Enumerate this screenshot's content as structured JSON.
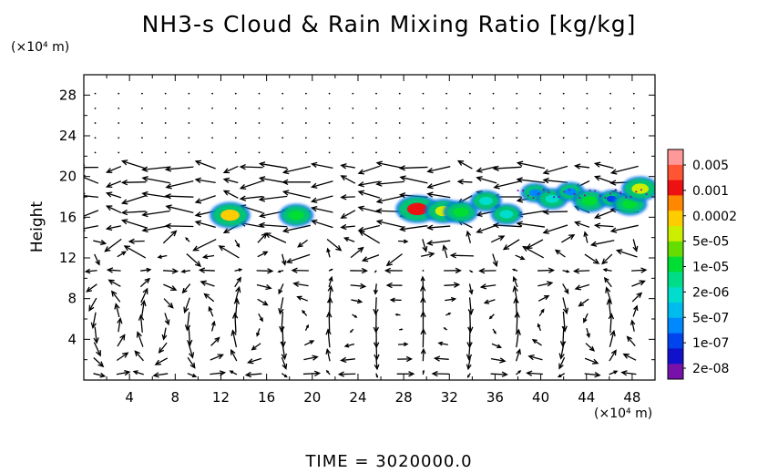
{
  "chart_data": {
    "type": "heatmap",
    "title": "NH3-s Cloud & Rain Mixing Ratio [kg/kg]",
    "xlabel": "",
    "ylabel": "Height",
    "x_unit": "(×10⁴ m)",
    "y_unit": "(×10⁴ m)",
    "xlim": [
      0,
      50
    ],
    "ylim": [
      0,
      30
    ],
    "x_ticks": [
      "4",
      "8",
      "12",
      "16",
      "20",
      "24",
      "28",
      "32",
      "36",
      "40",
      "44",
      "48"
    ],
    "y_ticks": [
      "4",
      "8",
      "12",
      "16",
      "20",
      "24",
      "28"
    ],
    "colorbar": {
      "labels": [
        "0.005",
        "0.001",
        "0.0002",
        "5e-05",
        "1e-05",
        "2e-06",
        "5e-07",
        "1e-07",
        "2e-08"
      ],
      "colors": [
        "#ff9999",
        "#ff5533",
        "#ee1111",
        "#ff8800",
        "#ffcc00",
        "#ccee00",
        "#66dd00",
        "#00dd33",
        "#00dd88",
        "#00ddcc",
        "#00bbee",
        "#0088ff",
        "#0044ee",
        "#1111cc",
        "#7711aa"
      ]
    },
    "clouds": [
      {
        "x": 12.8,
        "y": 16.2,
        "value": "0.0002"
      },
      {
        "x": 18.6,
        "y": 16.2,
        "value": "1e-05"
      },
      {
        "x": 29.2,
        "y": 16.8,
        "value": "0.001"
      },
      {
        "x": 31.5,
        "y": 16.6,
        "value": "5e-05"
      },
      {
        "x": 33.0,
        "y": 16.5,
        "value": "1e-05"
      },
      {
        "x": 35.2,
        "y": 17.6,
        "value": "2e-06"
      },
      {
        "x": 37.0,
        "y": 16.3,
        "value": "2e-06"
      },
      {
        "x": 39.5,
        "y": 18.4,
        "value": "5e-07"
      },
      {
        "x": 41.0,
        "y": 17.8,
        "value": "2e-06"
      },
      {
        "x": 42.6,
        "y": 18.5,
        "value": "5e-07"
      },
      {
        "x": 44.3,
        "y": 17.6,
        "value": "1e-05"
      },
      {
        "x": 46.2,
        "y": 17.8,
        "value": "1e-07"
      },
      {
        "x": 47.8,
        "y": 17.3,
        "value": "1e-05"
      },
      {
        "x": 48.7,
        "y": 18.8,
        "value": "5e-05"
      }
    ],
    "vector_field": "wind arrows over full domain"
  },
  "time_label": "TIME",
  "time_value": "3020000.0"
}
